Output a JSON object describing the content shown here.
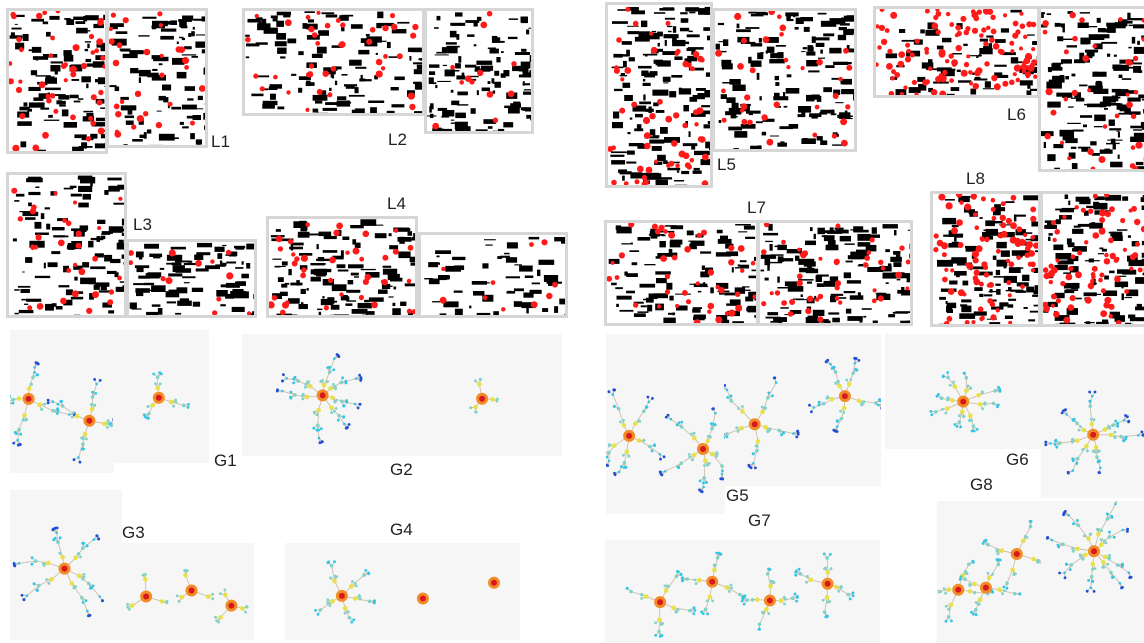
{
  "figure": {
    "labels": {
      "L1": "L1",
      "L2": "L2",
      "L3": "L3",
      "L4": "L4",
      "L5": "L5",
      "L6": "L6",
      "L7": "L7",
      "L8": "L8",
      "G1": "G1",
      "G2": "G2",
      "G3": "G3",
      "G4": "G4",
      "G5": "G5",
      "G6": "G6",
      "G7": "G7",
      "G8": "G8"
    },
    "colors": {
      "ink": "#000000",
      "keypoint": "#ff1a1a",
      "panel_border": "#d6d6d6",
      "graph_background": "#f6f6f6",
      "graph_edge": "#c8b8a0",
      "node_palette": [
        "#d7191c",
        "#f28c28",
        "#f6c343",
        "#e8e24a",
        "#7fd3c8",
        "#31c6e8",
        "#1f4fd6"
      ]
    }
  }
}
